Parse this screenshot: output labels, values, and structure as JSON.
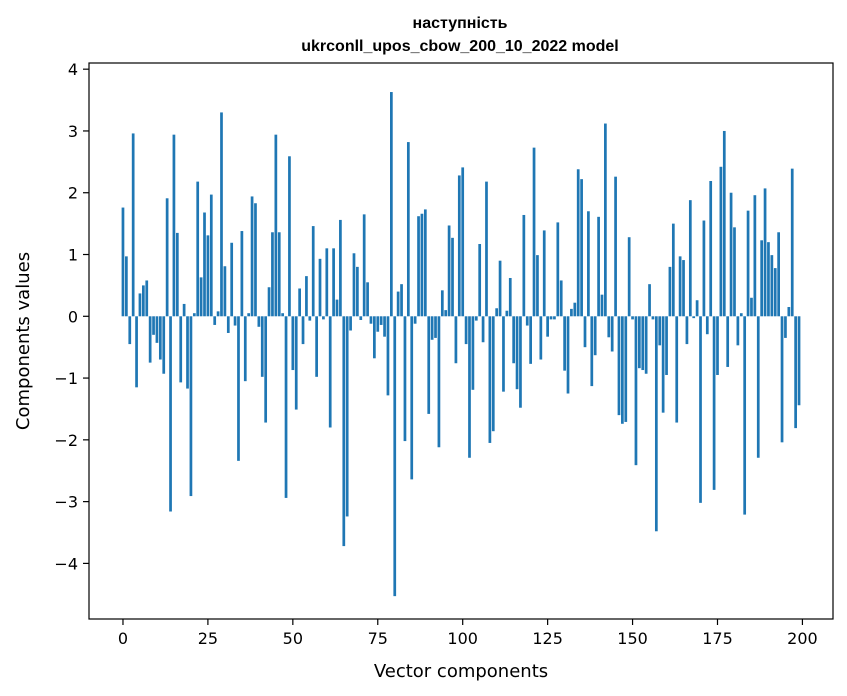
{
  "chart_data": {
    "type": "bar",
    "title_line1": "наступність",
    "title_line2": "ukrconll_upos_cbow_200_10_2022 model",
    "xlabel": "Vector components",
    "ylabel": "Components values",
    "xlim": [
      -10,
      209
    ],
    "ylim": [
      -4.9,
      4.1
    ],
    "xticks": [
      0,
      25,
      50,
      75,
      100,
      125,
      150,
      175,
      200
    ],
    "xtick_labels": [
      "0",
      "25",
      "50",
      "75",
      "100",
      "125",
      "150",
      "175",
      "200"
    ],
    "yticks": [
      -4,
      -3,
      -2,
      -1,
      0,
      1,
      2,
      3,
      4
    ],
    "ytick_labels": [
      "−4",
      "−3",
      "−2",
      "−1",
      "0",
      "1",
      "2",
      "3",
      "4"
    ],
    "bar_color": "#1f77b4",
    "grid": false,
    "values": [
      1.76,
      0.97,
      -0.45,
      2.96,
      -1.15,
      0.37,
      0.5,
      0.58,
      -0.75,
      -0.3,
      -0.43,
      -0.7,
      -0.93,
      1.91,
      -3.16,
      2.94,
      1.35,
      -1.07,
      0.2,
      -1.17,
      -2.91,
      0.05,
      2.18,
      0.63,
      1.68,
      1.31,
      1.97,
      -0.14,
      0.08,
      3.3,
      0.81,
      -0.27,
      1.19,
      -0.15,
      -2.34,
      1.38,
      -1.05,
      0.05,
      1.94,
      1.83,
      -0.17,
      -0.98,
      -1.72,
      0.47,
      1.36,
      2.94,
      1.36,
      0.05,
      -2.94,
      2.59,
      -0.87,
      -1.51,
      0.45,
      -0.45,
      0.65,
      -0.07,
      1.46,
      -0.98,
      0.93,
      -0.05,
      1.1,
      -1.8,
      1.1,
      0.27,
      1.56,
      -3.72,
      -3.24,
      -0.23,
      1.02,
      0.8,
      -0.06,
      1.65,
      0.55,
      -0.12,
      -0.68,
      -0.25,
      -0.14,
      -0.33,
      -1.28,
      3.63,
      -4.53,
      0.4,
      0.52,
      -2.02,
      2.82,
      -2.64,
      -0.12,
      1.62,
      1.66,
      1.73,
      -1.58,
      -0.38,
      -0.35,
      -2.12,
      0.42,
      0.1,
      1.47,
      1.27,
      -0.76,
      2.28,
      2.41,
      -0.45,
      -2.29,
      -1.19,
      -0.07,
      1.17,
      -0.42,
      2.18,
      -2.05,
      -1.86,
      0.13,
      0.9,
      -1.22,
      0.09,
      0.62,
      -0.76,
      -1.18,
      -1.48,
      1.64,
      -0.15,
      -0.77,
      2.73,
      0.99,
      -0.7,
      1.39,
      -0.33,
      -0.05,
      -0.05,
      1.52,
      0.58,
      -0.88,
      -1.25,
      0.12,
      0.22,
      2.38,
      2.22,
      -0.5,
      1.7,
      -1.13,
      -0.63,
      1.61,
      0.35,
      3.12,
      -0.34,
      -0.57,
      2.26,
      -1.6,
      -1.74,
      -1.71,
      1.28,
      -0.05,
      -2.41,
      -0.84,
      -0.87,
      -0.93,
      0.52,
      -0.05,
      -3.48,
      -0.47,
      -1.56,
      -0.95,
      0.8,
      1.5,
      -1.72,
      0.97,
      0.91,
      -0.45,
      1.88,
      -0.03,
      0.26,
      -3.02,
      1.55,
      -0.29,
      2.19,
      -2.81,
      -0.95,
      2.42,
      3.0,
      -0.82,
      2.0,
      1.44,
      -0.47,
      0.05,
      -3.21,
      1.71,
      0.3,
      1.96,
      -2.29,
      1.23,
      2.07,
      1.2,
      0.99,
      0.78,
      1.36,
      -2.04,
      -0.35,
      0.15,
      2.39,
      -1.81,
      -1.44
    ]
  }
}
